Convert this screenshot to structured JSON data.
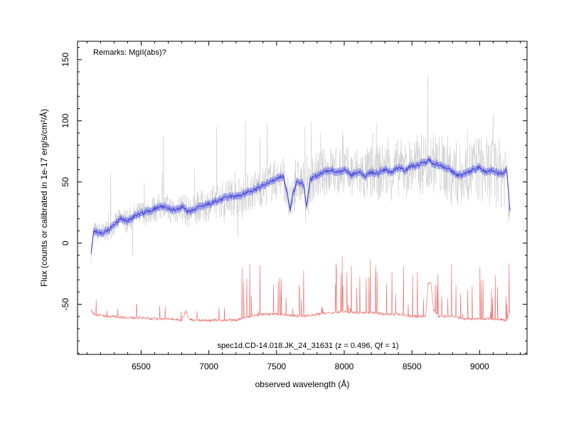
{
  "chart_data": {
    "type": "line",
    "title": "",
    "xlabel": "observed wavelength (Å)",
    "ylabel": "Flux (counts or calibrated in 1e-17 erg/s/cm²/Å)",
    "xlim": [
      6030,
      9350
    ],
    "ylim": [
      -91,
      165
    ],
    "x_ticks": [
      6500,
      7000,
      7500,
      8000,
      8500,
      9000
    ],
    "y_ticks": [
      -50,
      0,
      50,
      100,
      150
    ],
    "grid": false,
    "legend": "none",
    "annotations": {
      "remarks": "Remarks: MgII(abs)?",
      "spectrum_id": "spec1d.CD-14.018.JK_24_31631 (z = 0.496, Qf = 1)"
    },
    "colors": {
      "raw": "#c8c8c8",
      "smoothed": "#4040dd",
      "band": "#8a8ae6",
      "sky": "#ee6a6a"
    },
    "series": [
      {
        "x": [
          6130,
          6150,
          6200,
          6250,
          6300,
          6350,
          6400,
          6450,
          6500,
          6550,
          6600,
          6650,
          6700,
          6750,
          6800,
          6850,
          6900,
          6950,
          7000,
          7050,
          7100,
          7150,
          7200,
          7250,
          7300,
          7350,
          7400,
          7450,
          7500,
          7550,
          7580,
          7600,
          7620,
          7650,
          7700,
          7720,
          7750,
          7800,
          7850,
          7900,
          7950,
          8000,
          8050,
          8100,
          8150,
          8200,
          8250,
          8300,
          8350,
          8400,
          8450,
          8500,
          8550,
          8600,
          8630,
          8650,
          8700,
          8750,
          8800,
          8850,
          8900,
          8950,
          9000,
          9050,
          9100,
          9150,
          9200,
          9225
        ],
        "values": [
          -8,
          10,
          8,
          10,
          15,
          20,
          18,
          22,
          24,
          26,
          28,
          30,
          28,
          27,
          30,
          25,
          28,
          30,
          32,
          34,
          36,
          38,
          38,
          40,
          42,
          44,
          47,
          50,
          52,
          55,
          40,
          27,
          40,
          50,
          48,
          30,
          52,
          55,
          58,
          60,
          58,
          60,
          56,
          58,
          55,
          58,
          57,
          60,
          58,
          62,
          60,
          63,
          64,
          66,
          68,
          66,
          64,
          62,
          58,
          55,
          57,
          60,
          62,
          58,
          60,
          56,
          60,
          25
        ]
      },
      {
        "x": [
          6130,
          6150,
          6200,
          6250,
          6300,
          6400,
          6500,
          6600,
          6700,
          6800,
          6830,
          6850,
          6900,
          7000,
          7100,
          7200,
          7240,
          7300,
          7400,
          7500,
          7600,
          7700,
          7800,
          7900,
          8000,
          8100,
          8200,
          8300,
          8350,
          8400,
          8500,
          8600,
          8620,
          8640,
          8660,
          8700,
          8800,
          8900,
          9000,
          9100,
          9200,
          9225
        ],
        "values": [
          -55,
          -58,
          -59,
          -60,
          -60,
          -61,
          -61,
          -62,
          -62,
          -63,
          -55,
          -62,
          -63,
          -63,
          -63,
          -63,
          -62,
          -60,
          -58,
          -58,
          -59,
          -60,
          -58,
          -57,
          -56,
          -57,
          -57,
          -58,
          -58,
          -58,
          -60,
          -60,
          -33,
          -32,
          -55,
          -60,
          -60,
          -62,
          -62,
          -62,
          -63,
          -55
        ]
      }
    ]
  }
}
